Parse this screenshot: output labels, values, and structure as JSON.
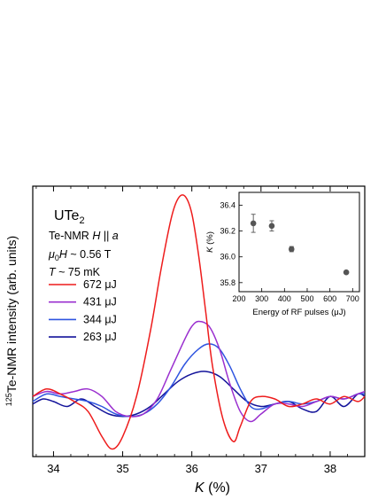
{
  "chart_data": [
    {
      "type": "line",
      "sample": "UTe",
      "sample_sub": "2",
      "conditions": [
        {
          "italic_prefix": "",
          "text": "Te-NMR  ",
          "italic": "H",
          "rest": " || ",
          "italic2": "a"
        },
        {
          "italic_prefix": "μ",
          "sub": "0",
          "italic": "H",
          "rest": " ~ 0.56 T"
        },
        {
          "italic": "T",
          "rest": " ~ 75 mK"
        }
      ],
      "xlabel_italic": "K",
      "xlabel_rest": " (%)",
      "ylabel_sup": "125",
      "ylabel_rest": "Te-NMR intensity (arb. units)",
      "xlim": [
        33.7,
        38.5
      ],
      "ylim": [
        0,
        1.08
      ],
      "xticks": [
        "34",
        "35",
        "36",
        "37",
        "38"
      ],
      "grid": false,
      "legend_position": "upper-left",
      "series": [
        {
          "name": "672 μJ",
          "color": "#ee1c1c",
          "x": [
            33.7,
            33.9,
            34.1,
            34.3,
            34.5,
            34.7,
            34.85,
            35.0,
            35.2,
            35.4,
            35.55,
            35.7,
            35.8,
            35.9,
            36.0,
            36.1,
            36.2,
            36.3,
            36.45,
            36.6,
            36.7,
            36.85,
            37.0,
            37.2,
            37.4,
            37.6,
            37.8,
            38.0,
            38.2,
            38.4,
            38.5
          ],
          "y": [
            0.24,
            0.27,
            0.25,
            0.22,
            0.18,
            0.08,
            0.03,
            0.08,
            0.24,
            0.5,
            0.74,
            0.95,
            1.03,
            1.04,
            0.97,
            0.8,
            0.58,
            0.36,
            0.15,
            0.06,
            0.12,
            0.22,
            0.24,
            0.23,
            0.2,
            0.21,
            0.23,
            0.21,
            0.24,
            0.22,
            0.24
          ]
        },
        {
          "name": "431 μJ",
          "color": "#9a2fcf",
          "x": [
            33.7,
            33.9,
            34.1,
            34.3,
            34.5,
            34.7,
            34.9,
            35.1,
            35.3,
            35.5,
            35.7,
            35.9,
            36.0,
            36.1,
            36.25,
            36.4,
            36.55,
            36.7,
            36.85,
            37.0,
            37.2,
            37.4,
            37.6,
            37.8,
            38.0,
            38.2,
            38.4,
            38.5
          ],
          "y": [
            0.24,
            0.26,
            0.25,
            0.26,
            0.27,
            0.24,
            0.18,
            0.16,
            0.17,
            0.23,
            0.35,
            0.47,
            0.52,
            0.54,
            0.52,
            0.43,
            0.29,
            0.18,
            0.14,
            0.17,
            0.21,
            0.21,
            0.2,
            0.22,
            0.24,
            0.23,
            0.25,
            0.26
          ]
        },
        {
          "name": "344 μJ",
          "color": "#2f55e0",
          "x": [
            33.7,
            33.9,
            34.1,
            34.3,
            34.5,
            34.7,
            34.9,
            35.1,
            35.3,
            35.5,
            35.7,
            35.9,
            36.1,
            36.25,
            36.4,
            36.55,
            36.7,
            36.85,
            37.0,
            37.2,
            37.4,
            37.6,
            37.8,
            38.0,
            38.2,
            38.4,
            38.5
          ],
          "y": [
            0.22,
            0.25,
            0.24,
            0.23,
            0.22,
            0.2,
            0.17,
            0.16,
            0.17,
            0.21,
            0.28,
            0.37,
            0.43,
            0.45,
            0.43,
            0.36,
            0.27,
            0.2,
            0.19,
            0.21,
            0.22,
            0.21,
            0.22,
            0.24,
            0.23,
            0.25,
            0.25
          ]
        },
        {
          "name": "263 μJ",
          "color": "#13139a",
          "x": [
            33.7,
            33.85,
            34.0,
            34.2,
            34.4,
            34.6,
            34.8,
            35.0,
            35.2,
            35.4,
            35.6,
            35.8,
            36.0,
            36.2,
            36.4,
            36.6,
            36.8,
            37.0,
            37.2,
            37.4,
            37.6,
            37.8,
            38.0,
            38.2,
            38.4,
            38.5
          ],
          "y": [
            0.21,
            0.23,
            0.22,
            0.2,
            0.23,
            0.2,
            0.17,
            0.16,
            0.17,
            0.2,
            0.25,
            0.3,
            0.33,
            0.34,
            0.32,
            0.27,
            0.22,
            0.2,
            0.21,
            0.22,
            0.19,
            0.18,
            0.24,
            0.2,
            0.25,
            0.24
          ]
        }
      ]
    },
    {
      "type": "scatter",
      "xlabel": "Energy of RF pulses (μJ)",
      "ylabel_italic": "K",
      "ylabel_rest": " (%)",
      "xlim": [
        200,
        730
      ],
      "ylim": [
        35.73,
        36.5
      ],
      "xticks": [
        200,
        300,
        400,
        500,
        600,
        700
      ],
      "yticks": [
        "35.8",
        "36.0",
        "36.2",
        "36.4"
      ],
      "color": "#555555",
      "points": [
        {
          "x": 263,
          "y": 36.26,
          "err": 0.07
        },
        {
          "x": 344,
          "y": 36.24,
          "err": 0.04
        },
        {
          "x": 431,
          "y": 36.06,
          "err": 0.02
        },
        {
          "x": 672,
          "y": 35.88,
          "err": 0.01
        }
      ]
    }
  ]
}
